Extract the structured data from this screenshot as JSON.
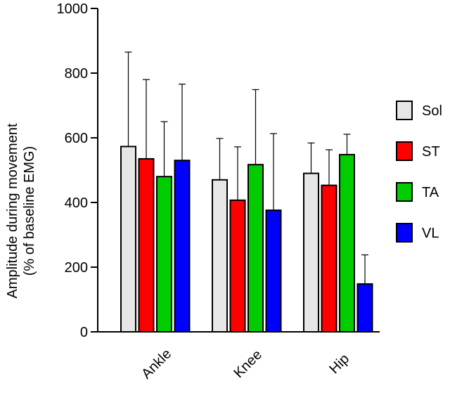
{
  "chart_data": {
    "type": "bar",
    "title": "",
    "ylabel_line1": "Amplitude during movement",
    "ylabel_line2": "(% of baseline EMG)",
    "xlabel": "",
    "ylim": [
      0,
      1000
    ],
    "yticks": [
      0,
      200,
      400,
      600,
      800,
      1000
    ],
    "categories": [
      "Ankle",
      "Knee",
      "Hip"
    ],
    "legend_position": "right",
    "error_bars": "upper only",
    "series": [
      {
        "name": "Sol",
        "color": "#e6e6e6",
        "values": [
          573,
          470,
          490
        ],
        "errors": [
          292,
          128,
          94
        ]
      },
      {
        "name": "ST",
        "color": "#ff0000",
        "values": [
          535,
          407,
          453
        ],
        "errors": [
          245,
          165,
          110
        ]
      },
      {
        "name": "TA",
        "color": "#00cc00",
        "values": [
          480,
          517,
          548
        ],
        "errors": [
          170,
          232,
          63
        ]
      },
      {
        "name": "VL",
        "color": "#0000ff",
        "values": [
          530,
          376,
          148
        ],
        "errors": [
          236,
          237,
          90
        ]
      }
    ]
  }
}
